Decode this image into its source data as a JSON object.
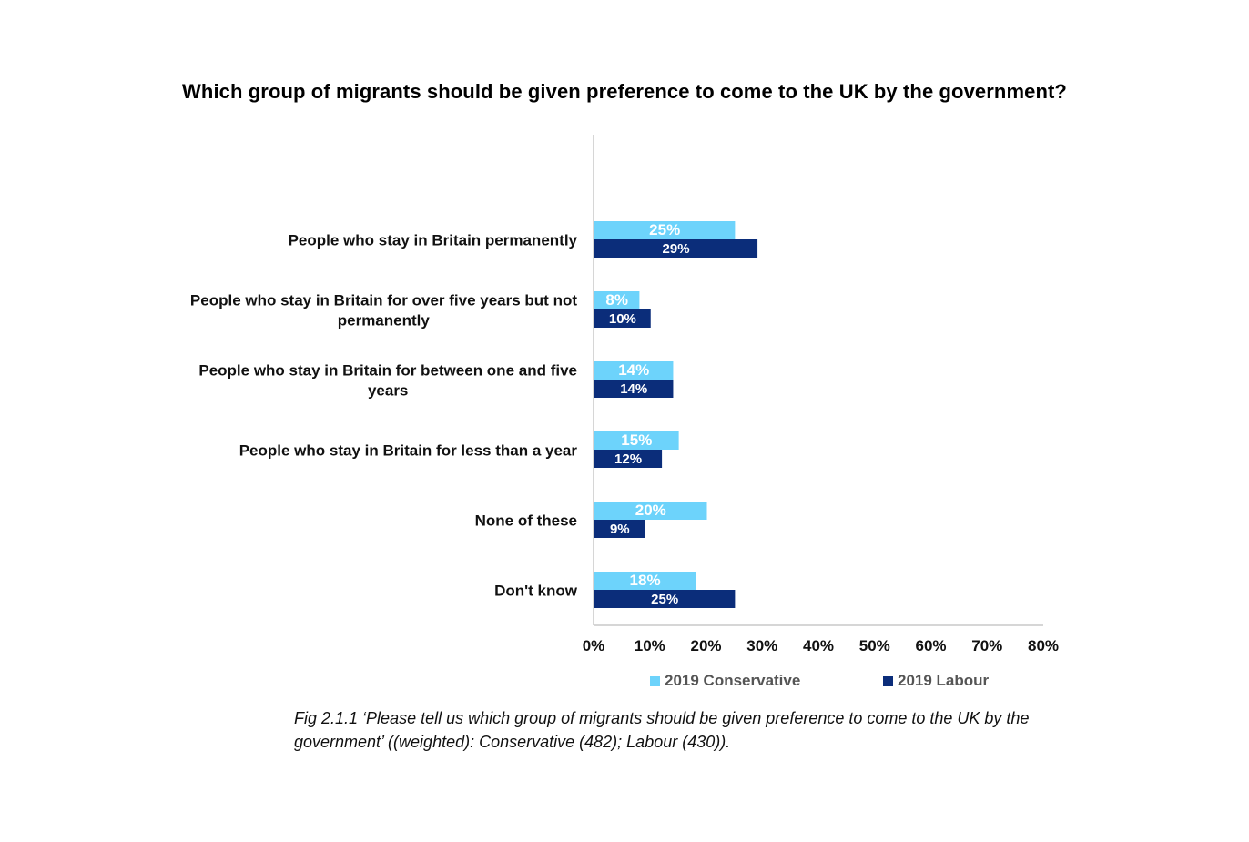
{
  "chart_data": {
    "type": "bar",
    "orientation": "horizontal",
    "title": "Which group of migrants should be given preference to come to the UK by the government?",
    "categories": [
      [
        "People who stay in Britain permanently"
      ],
      [
        "People who stay in Britain for over five years but not",
        "permanently"
      ],
      [
        "People who stay in Britain for between one and five",
        "years"
      ],
      [
        "People who stay in Britain for less than a year"
      ],
      [
        "None of these"
      ],
      [
        "Don't know"
      ]
    ],
    "series": [
      {
        "name": "2019 Conservative",
        "color": "#6dd3fb",
        "values": [
          25,
          8,
          14,
          15,
          20,
          18
        ],
        "labels": [
          "25%",
          "8%",
          "14%",
          "15%",
          "20%",
          "18%"
        ]
      },
      {
        "name": "2019 Labour",
        "color": "#0b2d7a",
        "values": [
          29,
          10,
          14,
          12,
          9,
          25
        ],
        "labels": [
          "29%",
          "10%",
          "14%",
          "12%",
          "9%",
          "25%"
        ]
      }
    ],
    "xlim": [
      0,
      80
    ],
    "ticks": [
      "0%",
      "10%",
      "20%",
      "30%",
      "40%",
      "50%",
      "60%",
      "70%",
      "80%"
    ],
    "grid": false,
    "legend_position": "bottom"
  },
  "caption": {
    "fig": "Fig 2.1.1",
    "text": " ‘Please tell us which group of migrants should be given preference to come to the UK by the government’ ((weighted): Conservative (482); Labour (430))."
  }
}
